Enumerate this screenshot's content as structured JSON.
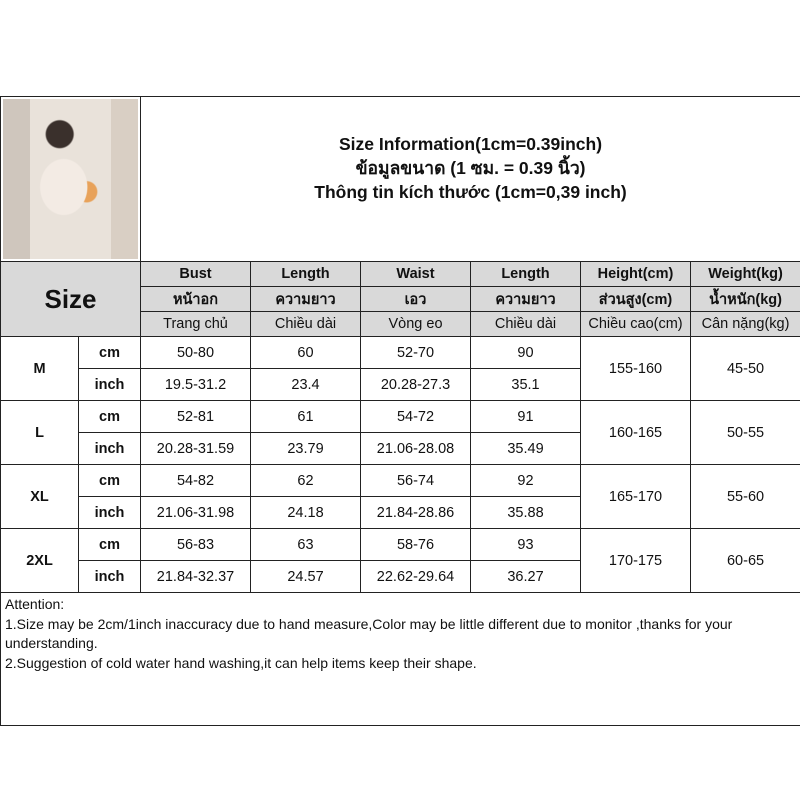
{
  "title_lines": [
    "Size Information(1cm=0.39inch)",
    "ข้อมูลขนาด (1 ซม. = 0.39 นิ้ว)",
    "Thông tin kích thước (1cm=0,39 inch)"
  ],
  "size_label": "Size",
  "columns": [
    [
      "Bust",
      "หน้าอก",
      "Trang chủ"
    ],
    [
      "Length",
      "ความยาว",
      "Chiều dài"
    ],
    [
      "Waist",
      "เอว",
      "Vòng eo"
    ],
    [
      "Length",
      "ความยาว",
      "Chiều dài"
    ],
    [
      "Height(cm)",
      "ส่วนสูง(cm)",
      "Chiều cao(cm)"
    ],
    [
      "Weight(kg)",
      "น้ำหนัก(kg)",
      "Cân nặng(kg)"
    ]
  ],
  "units": [
    "cm",
    "inch"
  ],
  "sizes": [
    {
      "name": "M",
      "cm": [
        "50-80",
        "60",
        "52-70",
        "90"
      ],
      "inch": [
        "19.5-31.2",
        "23.4",
        "20.28-27.3",
        "35.1"
      ],
      "height": "155-160",
      "weight": "45-50"
    },
    {
      "name": "L",
      "cm": [
        "52-81",
        "61",
        "54-72",
        "91"
      ],
      "inch": [
        "20.28-31.59",
        "23.79",
        "21.06-28.08",
        "35.49"
      ],
      "height": "160-165",
      "weight": "50-55"
    },
    {
      "name": "XL",
      "cm": [
        "54-82",
        "62",
        "56-74",
        "92"
      ],
      "inch": [
        "21.06-31.98",
        "24.18",
        "21.84-28.86",
        "35.88"
      ],
      "height": "165-170",
      "weight": "55-60"
    },
    {
      "name": "2XL",
      "cm": [
        "56-83",
        "63",
        "58-76",
        "93"
      ],
      "inch": [
        "21.84-32.37",
        "24.57",
        "22.62-29.64",
        "36.27"
      ],
      "height": "170-175",
      "weight": "60-65"
    }
  ],
  "attention": [
    "Attention:",
    "1.Size may be 2cm/1inch inaccuracy due to hand measure,Color may be little different due to monitor ,thanks for your understanding.",
    "2.Suggestion of cold water hand washing,it can help items keep their shape."
  ],
  "colors": {
    "header_bg": "#d9d9d9",
    "border": "#222222"
  }
}
